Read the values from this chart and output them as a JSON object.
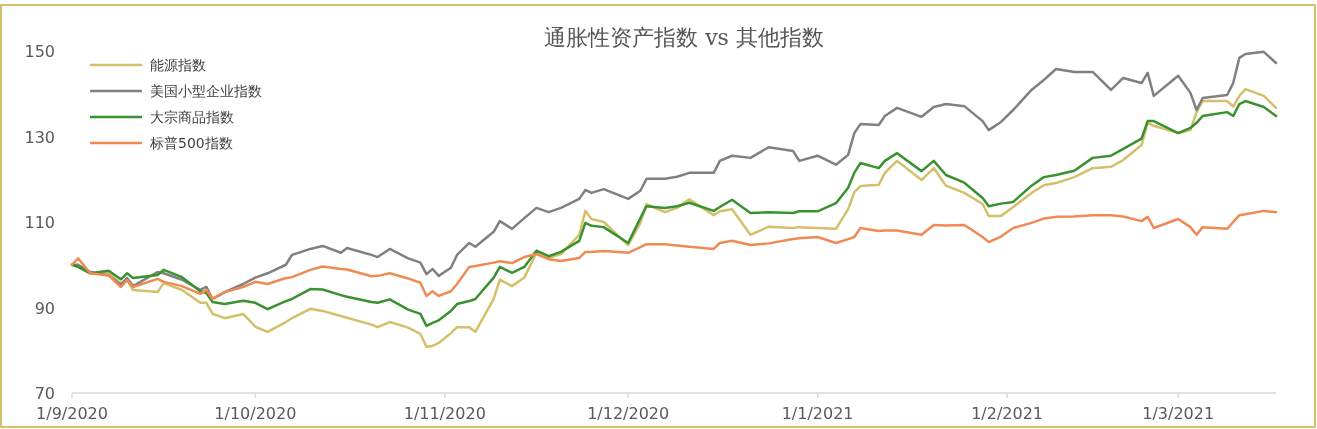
{
  "chart_data": {
    "type": "line",
    "title": "通胀性资产指数 vs 其他指数",
    "x": [
      "2020-09-01",
      "2020-09-02",
      "2020-09-04",
      "2020-09-07",
      "2020-09-09",
      "2020-09-10",
      "2020-09-11",
      "2020-09-15",
      "2020-09-16",
      "2020-09-19",
      "2020-09-22",
      "2020-09-23",
      "2020-09-24",
      "2020-09-26",
      "2020-09-29",
      "2020-10-01",
      "2020-10-03",
      "2020-10-06",
      "2020-10-07",
      "2020-10-10",
      "2020-10-12",
      "2020-10-15",
      "2020-10-16",
      "2020-10-20",
      "2020-10-21",
      "2020-10-23",
      "2020-10-26",
      "2020-10-28",
      "2020-10-29",
      "2020-10-30",
      "2020-10-31",
      "2020-11-02",
      "2020-11-03",
      "2020-11-05",
      "2020-11-06",
      "2020-11-09",
      "2020-11-10",
      "2020-11-12",
      "2020-11-14",
      "2020-11-16",
      "2020-11-18",
      "2020-11-20",
      "2020-11-23",
      "2020-11-24",
      "2020-11-25",
      "2020-11-27",
      "2020-12-01",
      "2020-12-03",
      "2020-12-04",
      "2020-12-07",
      "2020-12-09",
      "2020-12-11",
      "2020-12-15",
      "2020-12-16",
      "2020-12-18",
      "2020-12-21",
      "2020-12-24",
      "2020-12-28",
      "2020-12-29",
      "2021-01-01",
      "2021-01-04",
      "2021-01-06",
      "2021-01-07",
      "2021-01-08",
      "2021-01-11",
      "2021-01-12",
      "2021-01-14",
      "2021-01-18",
      "2021-01-20",
      "2021-01-22",
      "2021-01-25",
      "2021-01-28",
      "2021-01-29",
      "2021-01-31",
      "2021-02-02",
      "2021-02-05",
      "2021-02-07",
      "2021-02-09",
      "2021-02-12",
      "2021-02-15",
      "2021-02-18",
      "2021-02-20",
      "2021-02-23",
      "2021-02-24",
      "2021-02-25",
      "2021-03-01",
      "2021-03-03",
      "2021-03-04",
      "2021-03-05",
      "2021-03-09",
      "2021-03-10",
      "2021-03-11",
      "2021-03-12",
      "2021-03-15",
      "2021-03-17"
    ],
    "series": [
      {
        "name": "能源指数",
        "color": "#d4bf6a",
        "values": [
          100,
          99.5,
          98,
          98,
          95.7,
          96.4,
          94.1,
          93.6,
          95.7,
          94.1,
          91.1,
          91.1,
          88.5,
          87.5,
          88.5,
          85.5,
          84.3,
          86.6,
          87.5,
          89.7,
          89.2,
          88,
          87.6,
          86,
          85.4,
          86.6,
          85.3,
          83.8,
          80.8,
          81,
          81.7,
          84,
          85.4,
          85.4,
          84.3,
          92,
          96.5,
          95,
          97,
          102.8,
          101.6,
          102.5,
          107,
          112.6,
          110.7,
          110,
          104.6,
          109.8,
          114.2,
          112.3,
          113.3,
          115.3,
          111.6,
          112.5,
          113,
          107,
          108.9,
          108.6,
          108.8,
          108.6,
          108.4,
          113,
          117,
          118.4,
          118.7,
          121.5,
          124.3,
          119.8,
          122.6,
          118.5,
          116.8,
          114.2,
          111.4,
          111.4,
          113.5,
          116.8,
          118.6,
          119.1,
          120.5,
          122.6,
          122.9,
          124.5,
          128,
          133.2,
          132.5,
          130.8,
          131.5,
          135.7,
          138.3,
          138.3,
          137,
          139.5,
          141.1,
          139.5,
          136.7
        ]
      },
      {
        "name": "美国小型企业指数",
        "color": "#808080",
        "values": [
          100,
          100,
          98.3,
          97.5,
          95.3,
          96.9,
          95,
          98.3,
          98,
          96.5,
          94.1,
          94.8,
          92,
          93.6,
          95.5,
          97,
          98,
          100,
          102.3,
          103.7,
          104.4,
          102.8,
          103.9,
          102.3,
          101.8,
          103.7,
          101.5,
          100.5,
          97.8,
          99,
          97.4,
          99.3,
          102.3,
          105.1,
          104.2,
          107.7,
          110.2,
          108.4,
          110.9,
          113.3,
          112.3,
          113.3,
          115.4,
          117.5,
          116.8,
          117.7,
          115.4,
          117.3,
          120.1,
          120.1,
          120.6,
          121.5,
          121.5,
          124.3,
          125.5,
          125,
          127.5,
          126.6,
          124.3,
          125.5,
          123.4,
          125.7,
          130.8,
          132.9,
          132.7,
          134.8,
          136.7,
          134.6,
          136.9,
          137.6,
          137.1,
          133.6,
          131.5,
          133.4,
          136.2,
          140.9,
          143.2,
          145.8,
          145.1,
          145.1,
          140.9,
          143.7,
          142.5,
          144.9,
          139.5,
          144.2,
          140.2,
          136.2,
          139,
          139.7,
          142.5,
          148.4,
          149.3,
          149.8,
          147.2
        ]
      },
      {
        "name": "大宗商品指数",
        "color": "#3a9130",
        "values": [
          100,
          99.5,
          98,
          98.6,
          96.6,
          98,
          96.9,
          97.6,
          98.8,
          97.1,
          93.8,
          93.4,
          91.3,
          90.8,
          91.6,
          91.1,
          89.6,
          91.5,
          92,
          94.3,
          94.2,
          92.9,
          92.5,
          91.3,
          91.1,
          91.9,
          89.5,
          88.5,
          85.7,
          86.4,
          87,
          89.2,
          90.8,
          91.5,
          92,
          97,
          99.5,
          98.1,
          99.5,
          103.3,
          102,
          103,
          105.6,
          109.8,
          109.1,
          108.8,
          105.1,
          110.9,
          113.7,
          113.3,
          113.7,
          114.5,
          112.6,
          113.5,
          115.2,
          112.1,
          112.3,
          112.1,
          112.5,
          112.5,
          114.4,
          118,
          121.5,
          123.8,
          122.6,
          124.3,
          126.1,
          121.9,
          124.3,
          121,
          119.2,
          115.6,
          113.7,
          114.3,
          114.7,
          118.5,
          120.5,
          121,
          122,
          125,
          125.5,
          127.1,
          129.5,
          133.6,
          133.6,
          130.8,
          132,
          133.2,
          134.8,
          135.7,
          134.8,
          137.6,
          138.3,
          136.9,
          134.8
        ]
      },
      {
        "name": "标普500指数",
        "color": "#ef8a55",
        "values": [
          100,
          101.5,
          98,
          97.5,
          94.8,
          96.4,
          94.8,
          96.7,
          96,
          95,
          93.2,
          94.1,
          92,
          93.6,
          94.8,
          96,
          95.5,
          96.9,
          97.1,
          98.8,
          99.6,
          99,
          98.9,
          97.3,
          97.4,
          98,
          96.8,
          95.8,
          92.7,
          93.8,
          92.7,
          93.8,
          95.5,
          99.5,
          99.7,
          100.5,
          100.8,
          100.4,
          101.8,
          102.5,
          101.3,
          100.9,
          101.6,
          103,
          103,
          103.2,
          102.8,
          104.1,
          104.8,
          104.8,
          104.5,
          104.2,
          103.7,
          105.1,
          105.6,
          104.6,
          105,
          106,
          106.2,
          106.5,
          105.1,
          106,
          106.5,
          108.6,
          107.9,
          108,
          108,
          107,
          109.3,
          109.2,
          109.3,
          106.5,
          105.3,
          106.6,
          108.6,
          109.8,
          110.8,
          111.2,
          111.3,
          111.6,
          111.6,
          111.3,
          110.2,
          111.2,
          108.6,
          110.7,
          108.8,
          107,
          108.8,
          108.4,
          110,
          111.6,
          111.8,
          112.6,
          112.3
        ]
      }
    ],
    "xlim": [
      "2020-09-01",
      "2021-03-17"
    ],
    "xticks": [
      {
        "value": "2020-09-01",
        "label": "1/9/2020"
      },
      {
        "value": "2020-10-01",
        "label": "1/10/2020"
      },
      {
        "value": "2020-11-01",
        "label": "1/11/2020"
      },
      {
        "value": "2020-12-01",
        "label": "1/12/2020"
      },
      {
        "value": "2021-01-01",
        "label": "1/1/2021"
      },
      {
        "value": "2021-02-01",
        "label": "1/2/2021"
      },
      {
        "value": "2021-03-01",
        "label": "1/3/2021"
      }
    ],
    "ylim": [
      70,
      150
    ],
    "yticks": [
      70,
      90,
      110,
      130,
      150
    ],
    "grid": false,
    "legend": "top left",
    "marker": "none",
    "line_style": "solid"
  }
}
